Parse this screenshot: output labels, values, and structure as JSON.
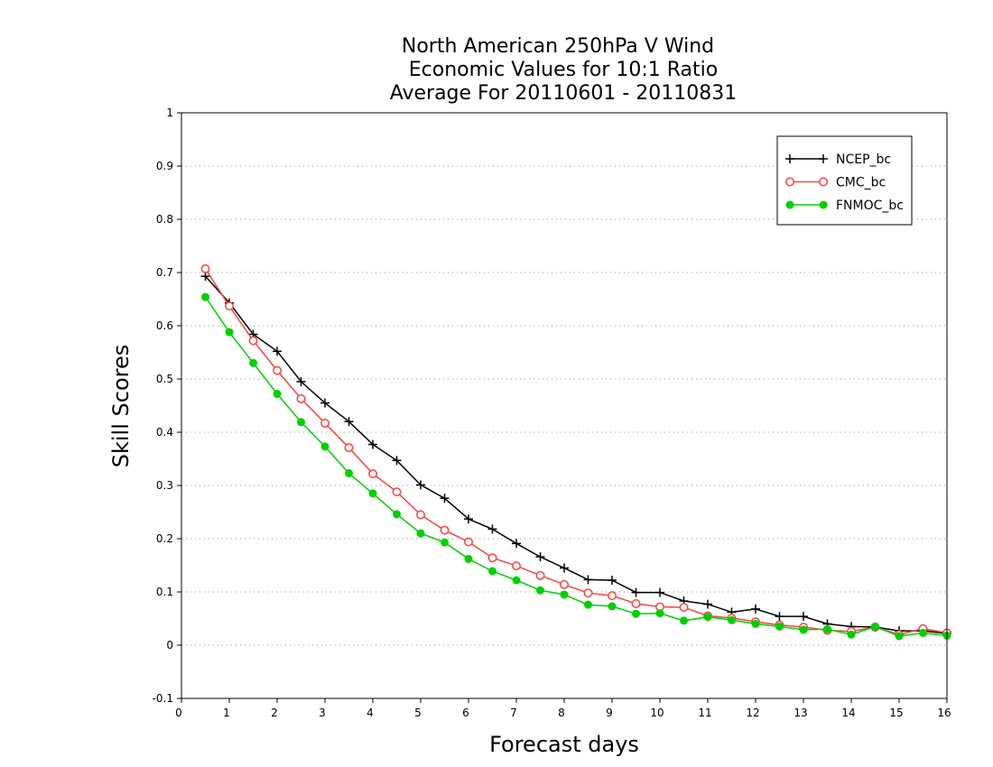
{
  "chart_data": {
    "type": "line",
    "title": [
      "North American 250hPa V Wind",
      "Economic Values for 10:1 Ratio",
      "Average For 20110601 - 20110831"
    ],
    "xlabel": "Forecast days",
    "ylabel": "Skill Scores",
    "xlim": [
      0,
      16
    ],
    "ylim": [
      -0.1,
      1
    ],
    "xticks": [
      0,
      1,
      2,
      3,
      4,
      5,
      6,
      7,
      8,
      9,
      10,
      11,
      12,
      13,
      14,
      15,
      16
    ],
    "yticks": [
      -0.1,
      0,
      0.1,
      0.2,
      0.3,
      0.4,
      0.5,
      0.6,
      0.7,
      0.8,
      0.9,
      1
    ],
    "ytick_labels": [
      "-0.1",
      "0",
      "0.1",
      "0.2",
      "0.3",
      "0.4",
      "0.5",
      "0.6",
      "0.7",
      "0.8",
      "0.9",
      "1"
    ],
    "grid": true,
    "legend_position": "top-right",
    "x": [
      0.5,
      1,
      1.5,
      2,
      2.5,
      3,
      3.5,
      4,
      4.5,
      5,
      5.5,
      6,
      6.5,
      7,
      7.5,
      8,
      8.5,
      9,
      9.5,
      10,
      10.5,
      11,
      11.5,
      12,
      12.5,
      13,
      13.5,
      14,
      14.5,
      15,
      15.5,
      16
    ],
    "series": [
      {
        "name": "NCEP_bc",
        "color": "#000000",
        "marker": "plus",
        "values": [
          0.693,
          0.643,
          0.584,
          0.552,
          0.495,
          0.455,
          0.42,
          0.377,
          0.347,
          0.301,
          0.276,
          0.237,
          0.218,
          0.191,
          0.166,
          0.145,
          0.123,
          0.122,
          0.099,
          0.099,
          0.083,
          0.077,
          0.062,
          0.068,
          0.054,
          0.054,
          0.04,
          0.035,
          0.034,
          0.027,
          0.027,
          0.022
        ]
      },
      {
        "name": "CMC_bc",
        "color": "#ff4040",
        "marker": "open-circle",
        "values": [
          0.707,
          0.637,
          0.572,
          0.516,
          0.463,
          0.417,
          0.371,
          0.322,
          0.288,
          0.245,
          0.216,
          0.194,
          0.164,
          0.149,
          0.131,
          0.114,
          0.098,
          0.093,
          0.078,
          0.072,
          0.071,
          0.055,
          0.051,
          0.044,
          0.038,
          0.034,
          0.028,
          0.026,
          0.034,
          0.02,
          0.031,
          0.023
        ]
      },
      {
        "name": "FNMOC_bc",
        "color": "#00d000",
        "marker": "filled-circle",
        "values": [
          0.654,
          0.588,
          0.53,
          0.472,
          0.419,
          0.373,
          0.323,
          0.285,
          0.246,
          0.21,
          0.193,
          0.162,
          0.139,
          0.122,
          0.103,
          0.095,
          0.076,
          0.073,
          0.059,
          0.06,
          0.046,
          0.053,
          0.047,
          0.04,
          0.035,
          0.029,
          0.03,
          0.02,
          0.035,
          0.017,
          0.023,
          0.018
        ]
      }
    ]
  }
}
